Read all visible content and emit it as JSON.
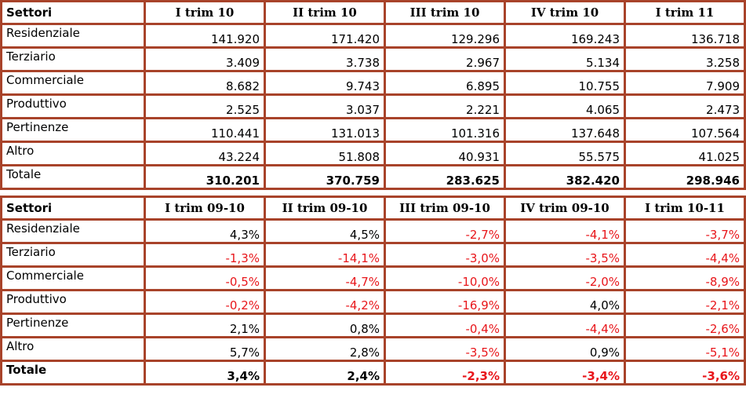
{
  "tables": [
    {
      "header": [
        "Settori",
        "I trim 10",
        "II trim 10",
        "III trim 10",
        "IV trim 10",
        "I trim 11"
      ],
      "rows": [
        [
          "Residenziale",
          "141.920",
          "171.420",
          "129.296",
          "169.243",
          "136.718"
        ],
        [
          "Terziario",
          "3.409",
          "3.738",
          "2.967",
          "5.134",
          "3.258"
        ],
        [
          "Commerciale",
          "8.682",
          "9.743",
          "6.895",
          "10.755",
          "7.909"
        ],
        [
          "Produttivo",
          "2.525",
          "3.037",
          "2.221",
          "4.065",
          "2.473"
        ],
        [
          "Pertinenze",
          "110.441",
          "131.013",
          "101.316",
          "137.648",
          "107.564"
        ],
        [
          "Altro",
          "43.224",
          "51.808",
          "40.931",
          "55.575",
          "41.025"
        ],
        [
          "Totale",
          "310.201",
          "370.759",
          "283.625",
          "382.420",
          "298.946"
        ]
      ]
    },
    {
      "header": [
        "Settori",
        "I trim 09-10",
        "II trim 09-10",
        "III trim 09-10",
        "IV trim 09-10",
        "I trim 10-11"
      ],
      "rows": [
        [
          "Residenziale",
          "4,3%",
          "4,5%",
          "-2,7%",
          "-4,1%",
          "-3,7%"
        ],
        [
          "Terziario",
          "-1,3%",
          "-14,1%",
          "-3,0%",
          "-3,5%",
          "-4,4%"
        ],
        [
          "Commerciale",
          "-0,5%",
          "-4,7%",
          "-10,0%",
          "-2,0%",
          "-8,9%"
        ],
        [
          "Produttivo",
          "-0,2%",
          "-4,2%",
          "-16,9%",
          "4,0%",
          "-2,1%"
        ],
        [
          "Pertinenze",
          "2,1%",
          "0,8%",
          "-0,4%",
          "-4,4%",
          "-2,6%"
        ],
        [
          "Altro",
          "5,7%",
          "2,8%",
          "-3,5%",
          "0,9%",
          "-5,1%"
        ],
        [
          "Totale",
          "3,4%",
          "2,4%",
          "-2,3%",
          "-3,4%",
          "-3,6%"
        ]
      ]
    }
  ]
}
